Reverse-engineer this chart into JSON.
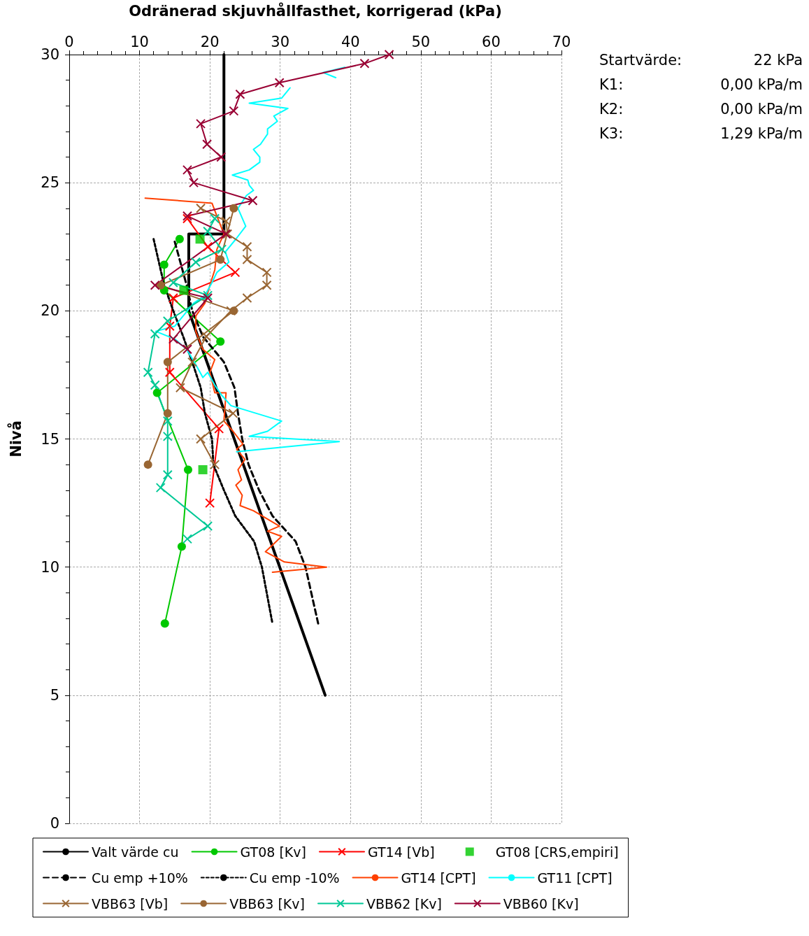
{
  "chart_data": {
    "type": "line",
    "xlabel": "Odränerad skjuvhållfasthet, korrigerad (kPa)",
    "ylabel": "Nivå",
    "xlim": [
      0,
      70
    ],
    "xticks": [
      0,
      10,
      20,
      30,
      40,
      50,
      60,
      70
    ],
    "ylim": [
      0,
      30
    ],
    "yticks": [
      0,
      5,
      10,
      15,
      20,
      25,
      30
    ],
    "grid": true,
    "legend": "bottom",
    "annotations": [
      "Startvärde: 22 kPa",
      "K1: 0,00 kPa/m",
      "K2: 0,00 kPa/m",
      "K3: 1,29 kPa/m"
    ],
    "series": [
      {
        "name": "Valt värde cu",
        "color": "#000000",
        "marker": "none",
        "line_style": "solid",
        "x": [
          22,
          22,
          17,
          17,
          36.4
        ],
        "values": [
          30,
          23,
          23,
          20,
          5
        ]
      },
      {
        "name": "GT08 [Kv]",
        "color": "#00c800",
        "marker": "circle",
        "line_style": "solid",
        "x": [
          15.7,
          13.5,
          13.5,
          21.5,
          12.5,
          16.9,
          16.0,
          13.6
        ],
        "values": [
          22.8,
          21.8,
          20.8,
          18.8,
          16.8,
          13.8,
          10.8,
          7.8
        ]
      },
      {
        "name": "GT14 [Vb]",
        "color": "#ff0000",
        "marker": "cross",
        "line_style": "solid",
        "x": [
          16.8,
          19.7,
          23.6,
          14.8,
          14.3,
          14.3,
          21.3,
          20.0
        ],
        "values": [
          23.6,
          22.5,
          21.5,
          20.5,
          19.4,
          17.6,
          15.4,
          12.5
        ]
      },
      {
        "name": "GT08 [CRS,empiri]",
        "type": "scatter",
        "color": "#00c800",
        "marker": "square",
        "x": [
          18.6,
          16.3,
          19.0
        ],
        "values": [
          22.8,
          20.8,
          13.8
        ]
      },
      {
        "name": "Cu emp +10%",
        "color": "#000000",
        "marker": "none",
        "line_style": "dashed",
        "x": [
          15,
          16.7,
          17.5,
          19,
          22,
          23.5,
          24,
          24.6,
          25.5,
          27,
          28.9,
          32.2,
          33.6,
          35.4
        ],
        "values": [
          22.7,
          21,
          20,
          19,
          18,
          17,
          16,
          15,
          14,
          13,
          12,
          11,
          10,
          7.8
        ]
      },
      {
        "name": "Cu emp -10%",
        "color": "#000000",
        "marker": "none",
        "line_style": "dotted",
        "x": [
          12,
          13.5,
          14.8,
          16.2,
          17.5,
          18.7,
          19.3,
          20.3,
          20.5,
          22,
          23.6,
          26.3,
          27.4,
          28.9
        ],
        "values": [
          22.8,
          21,
          20,
          19,
          18,
          17,
          16,
          15,
          14,
          13,
          12,
          11,
          10,
          7.8
        ]
      },
      {
        "name": "GT14 [CPT]",
        "color": "#ff4000",
        "marker": "none",
        "line_style": "solid",
        "x": [
          10.8,
          20.3,
          21,
          22,
          21,
          20.7,
          20,
          19.3,
          18,
          18,
          19,
          20.7,
          20,
          20.7,
          22.3,
          22,
          23.3,
          24.7,
          23.8,
          25,
          24,
          24.5,
          23.7,
          24.6,
          24.3,
          26.2,
          29.9,
          28.2,
          30.2,
          27.9,
          30.6,
          36.6,
          28.9
        ],
        "values": [
          24.4,
          24.2,
          23.7,
          23,
          22.4,
          21.6,
          21,
          20.3,
          19.8,
          19.2,
          18.5,
          18.1,
          17.6,
          16.8,
          16.8,
          15.7,
          15.3,
          14.8,
          14.6,
          14.2,
          13.8,
          13.4,
          13.2,
          12.8,
          12.4,
          12.2,
          11.6,
          11.4,
          11.2,
          10.6,
          10.2,
          10.0,
          9.8
        ]
      },
      {
        "name": "GT11 [CPT]",
        "color": "#00ffff",
        "marker": "none",
        "line_style": "solid",
        "x": [
          39.2,
          36.1,
          37.9,
          null,
          31.4,
          30.2,
          25.6,
          31.1,
          29.1,
          29.6,
          28.2,
          28.2,
          27.2,
          26.2,
          27.1,
          27.1,
          25.6,
          23.2,
          25.4,
          25.6,
          26.2,
          25.2,
          24,
          25.1,
          23.7,
          22.2,
          22.7,
          21,
          20.3,
          19.3,
          17.7,
          15,
          12.3,
          15,
          16.7,
          18,
          19,
          19.7,
          20.7,
          21.7,
          23,
          30.2,
          28.2,
          25.6,
          38.4,
          23.8
        ],
        "values": [
          29.5,
          29.3,
          29.1,
          null,
          28.7,
          28.3,
          28.1,
          27.9,
          27.6,
          27.4,
          27.1,
          26.9,
          26.5,
          26.3,
          26.0,
          25.8,
          25.5,
          25.3,
          25.1,
          24.9,
          24.7,
          24.5,
          24.0,
          23.3,
          22.8,
          22.3,
          21.9,
          21.5,
          21.1,
          20.6,
          20.3,
          19.4,
          19.2,
          18.9,
          18.5,
          17.9,
          17.4,
          17.6,
          17.1,
          16.7,
          16.3,
          15.7,
          15.3,
          15.1,
          14.9,
          14.5
        ]
      },
      {
        "name": "VBB63 [Vb]",
        "color": "#996633",
        "marker": "cross",
        "line_style": "solid",
        "x": [
          18.7,
          22.3,
          22.5,
          25.3,
          25.3,
          28.1,
          28.1,
          25.3,
          23,
          19.5,
          17.5,
          15.8,
          23.3,
          18.7,
          20.7
        ],
        "values": [
          24,
          23.5,
          23,
          22.5,
          22,
          21.5,
          21,
          20.5,
          20,
          19,
          18,
          17,
          16,
          15,
          14
        ]
      },
      {
        "name": "VBB63 [Kv]",
        "color": "#996633",
        "marker": "circle",
        "line_style": "solid",
        "x": [
          23.4,
          21.5,
          13,
          23.4,
          14,
          14,
          11.2
        ],
        "values": [
          24,
          22,
          21,
          20,
          18,
          16,
          14
        ]
      },
      {
        "name": "VBB62 [Kv]",
        "color": "#00c896",
        "marker": "cross",
        "line_style": "solid",
        "x": [
          20.7,
          19.7,
          21.7,
          18,
          14.8,
          19.7,
          14,
          12.2,
          11.2,
          12.2,
          14,
          14,
          14,
          13,
          19.7,
          16.8
        ],
        "values": [
          23.6,
          23.1,
          22.4,
          21.9,
          21.1,
          20.6,
          19.6,
          19.1,
          17.6,
          17.1,
          15.7,
          15.1,
          13.6,
          13.1,
          11.6,
          11.1
        ]
      },
      {
        "name": "VBB60 [Kv]",
        "color": "#990033",
        "marker": "cross",
        "line_style": "solid",
        "x": [
          45.5,
          42,
          29.9,
          24.3,
          23.4,
          18.7,
          19.6,
          21.6,
          16.8,
          17.7,
          26.1,
          16.8,
          22.3,
          12.2,
          19.7,
          14.8,
          16.8
        ],
        "values": [
          30,
          29.65,
          28.9,
          28.45,
          27.8,
          27.3,
          26.5,
          26.0,
          25.5,
          25.0,
          24.3,
          23.7,
          23.0,
          21.0,
          20.5,
          18.9,
          18.5
        ]
      }
    ]
  }
}
